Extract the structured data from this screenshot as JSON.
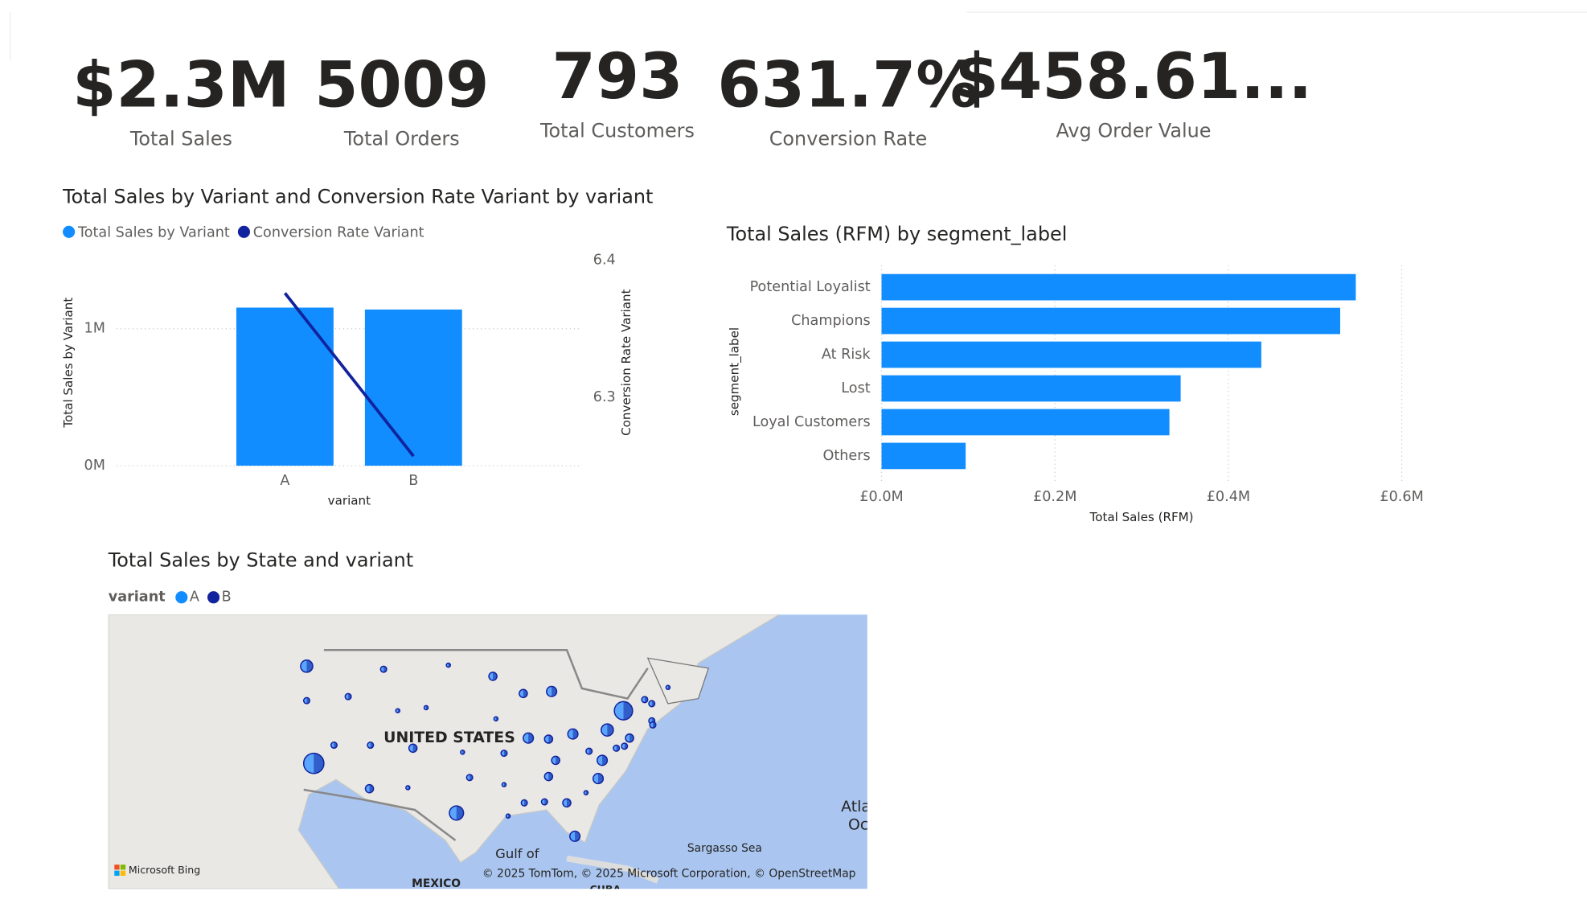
{
  "kpis": [
    {
      "value": "$2.3M",
      "label": "Total Sales"
    },
    {
      "value": "5009",
      "label": "Total Orders"
    },
    {
      "value": "793",
      "label": "Total Customers"
    },
    {
      "value": "631.7%",
      "label": "Conversion Rate"
    },
    {
      "value": "$458.61...",
      "label": "Avg Order Value"
    }
  ],
  "chart_data": [
    {
      "type": "combo",
      "title": "Total Sales by Variant and Conversion Rate Variant by variant",
      "categories": [
        "A",
        "B"
      ],
      "x_label": "variant",
      "y_label": "Total Sales by Variant",
      "y2_label": "Conversion Rate Variant",
      "series": [
        {
          "name": "Total Sales by Variant",
          "type": "bar",
          "color": "#118dff",
          "values": [
            1154000,
            1140000
          ]
        },
        {
          "name": "Conversion Rate Variant",
          "type": "line",
          "axis": "y2",
          "color": "#12239e",
          "values": [
            6.376,
            6.257
          ]
        }
      ],
      "ylim": [
        0,
        1500000
      ],
      "yticks": [
        {
          "value": 0,
          "label": "0M"
        },
        {
          "value": 1000000,
          "label": "1M"
        }
      ],
      "y2lim": [
        6.25,
        6.4
      ],
      "y2ticks": [
        6.3,
        6.4
      ],
      "grid": true
    },
    {
      "type": "hbar",
      "title": "Total Sales (RFM) by segment_label",
      "categories": [
        "Potential Loyalist",
        "Champions",
        "At Risk",
        "Lost",
        "Loyal Customers",
        "Others"
      ],
      "values": [
        547000,
        529000,
        438000,
        345000,
        332000,
        97000
      ],
      "color": "#118dff",
      "xlim": [
        0,
        600000
      ],
      "xticks": [
        {
          "value": 0,
          "label": "£0.0M"
        },
        {
          "value": 200000,
          "label": "£0.2M"
        },
        {
          "value": 400000,
          "label": "£0.4M"
        },
        {
          "value": 600000,
          "label": "£0.6M"
        }
      ],
      "x_label": "Total Sales (RFM)",
      "y_label": "segment_label",
      "grid": true
    }
  ],
  "map": {
    "title": "Total Sales by State and variant",
    "legend_title": "variant",
    "legend": [
      {
        "name": "A",
        "color": "#118dff"
      },
      {
        "name": "B",
        "color": "#12239e"
      }
    ],
    "labels": {
      "country": "UNITED STATES",
      "gulf": "Gulf of",
      "sea": "Sargasso Sea",
      "ocean1": "Atla",
      "ocean2": "Oc",
      "mexico": "MEXICO",
      "cuba": "CUBA",
      "bing": "Microsoft Bing",
      "credits": "© 2025 TomTom, © 2025 Microsoft Corporation, © OpenStreetMap"
    }
  }
}
